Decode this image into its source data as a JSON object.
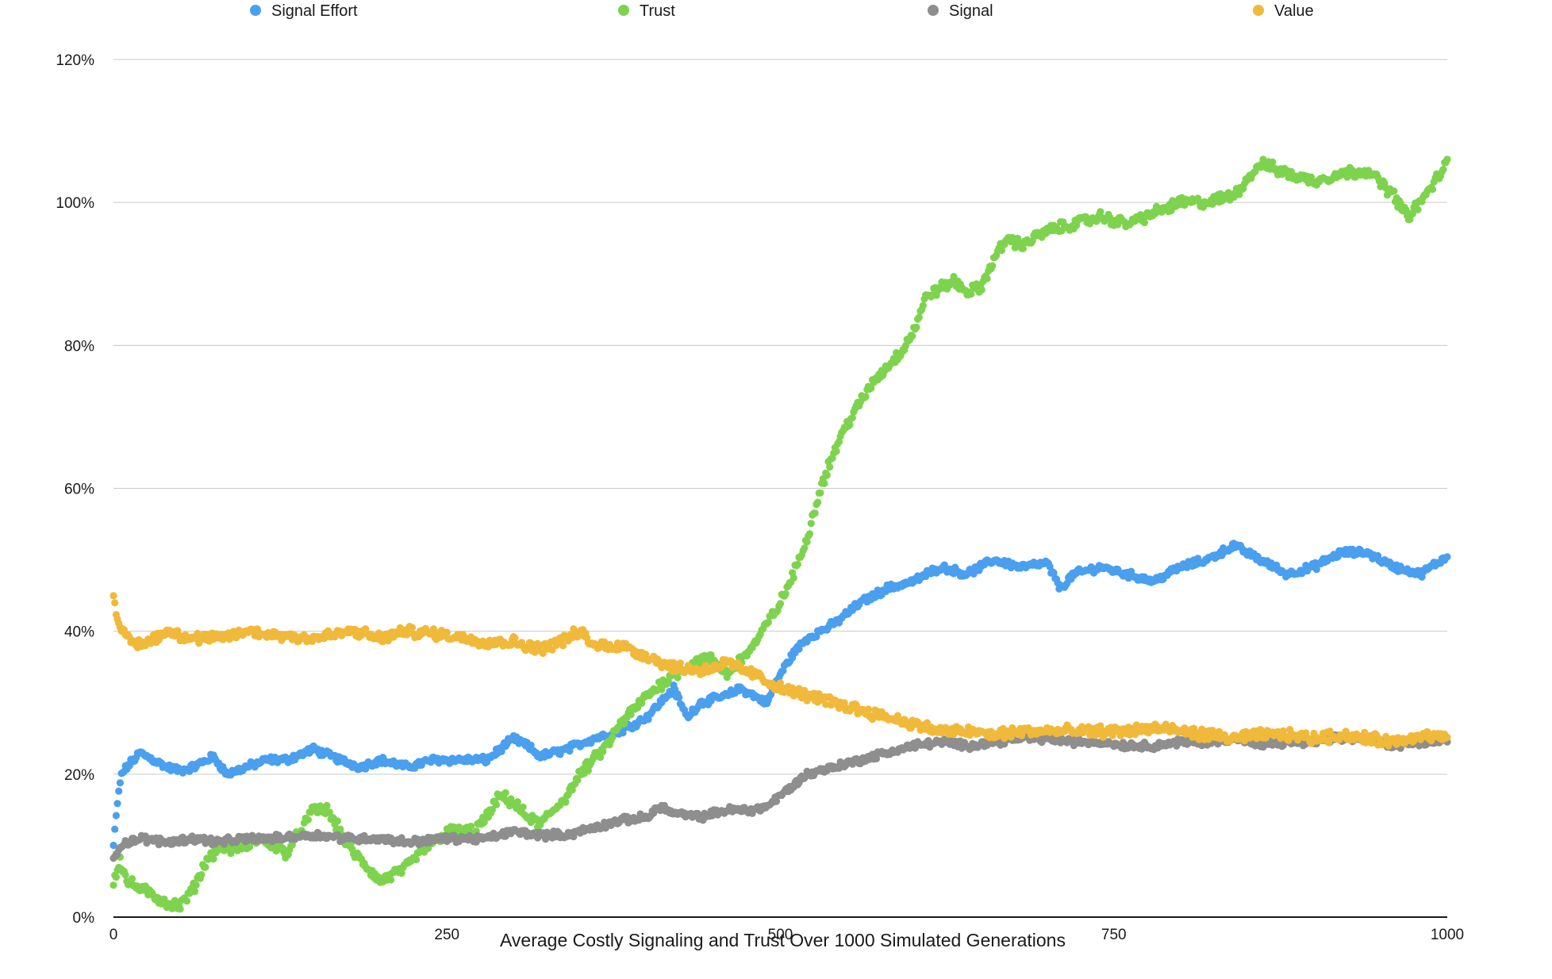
{
  "chart_data": {
    "type": "scatter",
    "title": "",
    "xlabel": "Average Costly Signaling and Trust Over 1000 Simulated Generations",
    "ylabel": "",
    "xlim": [
      0,
      1000
    ],
    "ylim": [
      0,
      1.2
    ],
    "y_format": "percent",
    "x_ticks": [
      "0",
      "250",
      "500",
      "750",
      "1000"
    ],
    "y_ticks": [
      "0%",
      "20%",
      "40%",
      "60%",
      "80%",
      "100%",
      "120%"
    ],
    "grid": "horizontal",
    "legend_position": "top",
    "series": [
      {
        "name": "Signal Effort",
        "color": "#4a9fee",
        "x": [
          0,
          3,
          6,
          10,
          20,
          30,
          40,
          50,
          60,
          75,
          85,
          100,
          115,
          130,
          150,
          170,
          185,
          200,
          220,
          240,
          260,
          280,
          300,
          310,
          320,
          340,
          360,
          380,
          400,
          410,
          420,
          430,
          440,
          460,
          470,
          480,
          490,
          500,
          510,
          520,
          540,
          560,
          580,
          600,
          620,
          640,
          660,
          680,
          700,
          710,
          720,
          740,
          760,
          780,
          800,
          820,
          840,
          860,
          880,
          900,
          920,
          940,
          960,
          980,
          1000
        ],
        "values": [
          0.1,
          0.16,
          0.2,
          0.21,
          0.23,
          0.22,
          0.21,
          0.205,
          0.21,
          0.225,
          0.2,
          0.21,
          0.22,
          0.22,
          0.235,
          0.22,
          0.21,
          0.22,
          0.21,
          0.22,
          0.22,
          0.22,
          0.25,
          0.24,
          0.225,
          0.235,
          0.25,
          0.26,
          0.28,
          0.3,
          0.32,
          0.28,
          0.3,
          0.31,
          0.32,
          0.31,
          0.3,
          0.34,
          0.37,
          0.39,
          0.41,
          0.44,
          0.46,
          0.47,
          0.49,
          0.48,
          0.5,
          0.49,
          0.495,
          0.46,
          0.48,
          0.49,
          0.48,
          0.47,
          0.49,
          0.5,
          0.52,
          0.5,
          0.48,
          0.49,
          0.51,
          0.51,
          0.49,
          0.48,
          0.505
        ]
      },
      {
        "name": "Trust",
        "color": "#7ed34e",
        "x": [
          0,
          5,
          10,
          20,
          30,
          40,
          50,
          60,
          70,
          80,
          90,
          100,
          110,
          120,
          130,
          140,
          150,
          160,
          170,
          180,
          190,
          200,
          210,
          220,
          230,
          250,
          270,
          280,
          290,
          300,
          310,
          320,
          330,
          340,
          350,
          360,
          370,
          380,
          390,
          400,
          420,
          440,
          450,
          460,
          470,
          480,
          490,
          500,
          510,
          520,
          530,
          540,
          550,
          560,
          570,
          580,
          590,
          600,
          610,
          620,
          630,
          640,
          650,
          660,
          670,
          680,
          700,
          720,
          740,
          760,
          780,
          800,
          820,
          840,
          860,
          880,
          900,
          920,
          940,
          960,
          970,
          980,
          1000
        ],
        "values": [
          0.05,
          0.08,
          0.05,
          0.04,
          0.03,
          0.02,
          0.015,
          0.04,
          0.08,
          0.1,
          0.095,
          0.1,
          0.11,
          0.1,
          0.09,
          0.12,
          0.15,
          0.15,
          0.12,
          0.09,
          0.07,
          0.05,
          0.06,
          0.07,
          0.09,
          0.12,
          0.12,
          0.14,
          0.17,
          0.16,
          0.14,
          0.13,
          0.15,
          0.17,
          0.2,
          0.22,
          0.24,
          0.27,
          0.29,
          0.31,
          0.34,
          0.36,
          0.36,
          0.34,
          0.36,
          0.38,
          0.41,
          0.44,
          0.48,
          0.53,
          0.6,
          0.65,
          0.69,
          0.72,
          0.75,
          0.77,
          0.79,
          0.82,
          0.87,
          0.88,
          0.89,
          0.875,
          0.88,
          0.92,
          0.95,
          0.94,
          0.96,
          0.97,
          0.98,
          0.97,
          0.985,
          1.0,
          1.0,
          1.01,
          1.055,
          1.04,
          1.03,
          1.04,
          1.045,
          1.01,
          0.98,
          1.0,
          1.055
        ]
      },
      {
        "name": "Signal",
        "color": "#8e8e8e",
        "x": [
          0,
          5,
          10,
          20,
          40,
          60,
          80,
          100,
          120,
          150,
          180,
          200,
          220,
          250,
          280,
          300,
          320,
          340,
          360,
          380,
          400,
          410,
          420,
          440,
          460,
          480,
          490,
          500,
          510,
          520,
          540,
          560,
          580,
          600,
          620,
          640,
          660,
          680,
          700,
          720,
          740,
          760,
          780,
          800,
          820,
          840,
          860,
          880,
          900,
          920,
          940,
          960,
          980,
          1000
        ],
        "values": [
          0.08,
          0.1,
          0.105,
          0.11,
          0.105,
          0.11,
          0.105,
          0.11,
          0.11,
          0.115,
          0.11,
          0.11,
          0.105,
          0.11,
          0.11,
          0.12,
          0.115,
          0.115,
          0.125,
          0.135,
          0.14,
          0.155,
          0.145,
          0.14,
          0.15,
          0.15,
          0.155,
          0.17,
          0.185,
          0.2,
          0.21,
          0.22,
          0.23,
          0.24,
          0.245,
          0.24,
          0.245,
          0.25,
          0.25,
          0.245,
          0.245,
          0.24,
          0.24,
          0.245,
          0.245,
          0.25,
          0.24,
          0.245,
          0.245,
          0.25,
          0.25,
          0.24,
          0.245,
          0.25
        ]
      },
      {
        "name": "Value",
        "color": "#f0b93a",
        "x": [
          0,
          3,
          6,
          10,
          20,
          40,
          60,
          80,
          100,
          120,
          150,
          180,
          200,
          220,
          250,
          280,
          300,
          320,
          340,
          350,
          360,
          380,
          400,
          420,
          440,
          460,
          480,
          500,
          520,
          540,
          560,
          580,
          600,
          620,
          640,
          660,
          680,
          700,
          720,
          740,
          760,
          780,
          800,
          820,
          840,
          860,
          880,
          900,
          920,
          940,
          960,
          980,
          1000
        ],
        "values": [
          0.45,
          0.42,
          0.4,
          0.39,
          0.38,
          0.4,
          0.39,
          0.39,
          0.4,
          0.395,
          0.39,
          0.4,
          0.39,
          0.4,
          0.395,
          0.385,
          0.385,
          0.375,
          0.39,
          0.4,
          0.38,
          0.38,
          0.365,
          0.35,
          0.345,
          0.355,
          0.34,
          0.32,
          0.31,
          0.3,
          0.29,
          0.28,
          0.27,
          0.26,
          0.26,
          0.255,
          0.26,
          0.26,
          0.26,
          0.26,
          0.26,
          0.265,
          0.26,
          0.255,
          0.25,
          0.255,
          0.255,
          0.25,
          0.255,
          0.25,
          0.245,
          0.255,
          0.25
        ]
      }
    ]
  }
}
